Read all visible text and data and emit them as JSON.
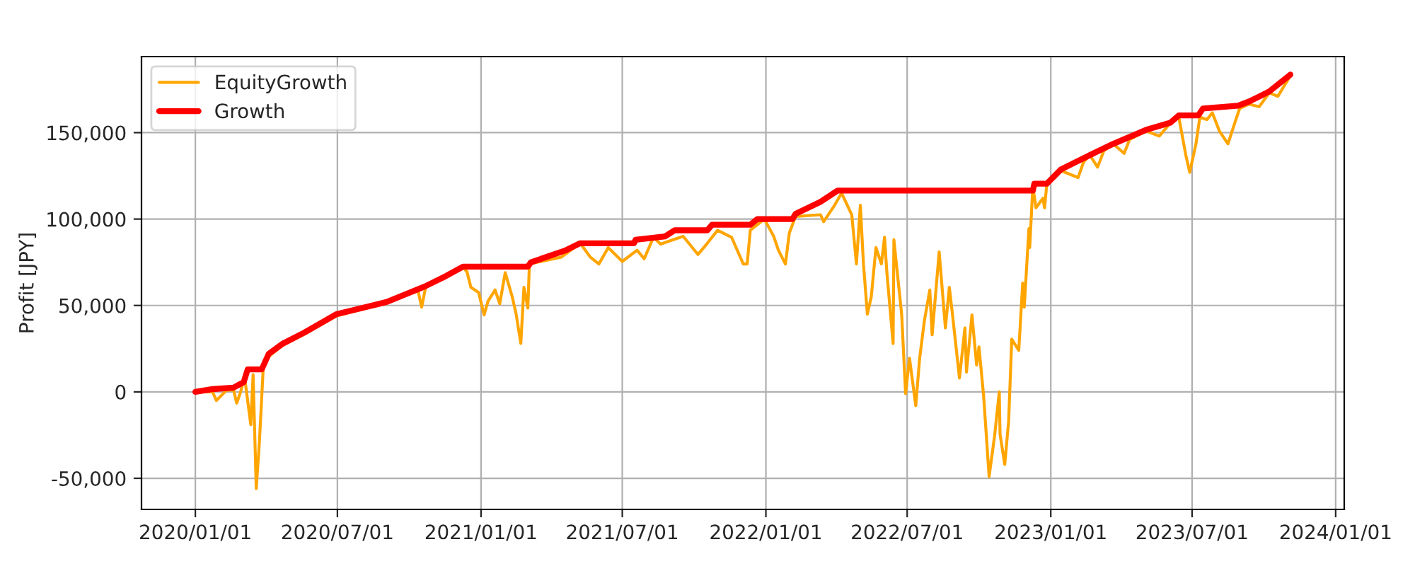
{
  "chart_data": {
    "type": "line",
    "ylabel": "Profit [JPY]",
    "legend": "top left",
    "grid": true,
    "marker": "none",
    "line_style": "solid",
    "xlim": [
      "2019-10-24",
      "2024-01-12"
    ],
    "xticks": [
      {
        "value": "2020-01-01",
        "label": "2020/01/01"
      },
      {
        "value": "2020-07-01",
        "label": "2020/07/01"
      },
      {
        "value": "2021-01-01",
        "label": "2021/01/01"
      },
      {
        "value": "2021-07-01",
        "label": "2021/07/01"
      },
      {
        "value": "2022-01-01",
        "label": "2022/01/01"
      },
      {
        "value": "2022-07-01",
        "label": "2022/07/01"
      },
      {
        "value": "2023-01-01",
        "label": "2023/01/01"
      },
      {
        "value": "2023-07-01",
        "label": "2023/07/01"
      },
      {
        "value": "2024-01-01",
        "label": "2024/01/01"
      }
    ],
    "ylim": [
      -68000,
      194000
    ],
    "yticks": [
      {
        "value": -50000,
        "label": "-50,000"
      },
      {
        "value": 0,
        "label": "0"
      },
      {
        "value": 50000,
        "label": "50,000"
      },
      {
        "value": 100000,
        "label": "100,000"
      },
      {
        "value": 150000,
        "label": "150,000"
      }
    ],
    "series": [
      {
        "name": "EquityGrowth",
        "color": "#ffa500",
        "x": [
          "2020-01-01",
          "2020-01-23",
          "2020-01-28",
          "2020-02-10",
          "2020-02-19",
          "2020-02-23",
          "2020-02-28",
          "2020-03-04",
          "2020-03-12",
          "2020-03-15",
          "2020-03-19",
          "2020-03-23",
          "2020-03-28",
          "2020-04-04",
          "2020-04-22",
          "2020-05-20",
          "2020-06-30",
          "2020-09-02",
          "2020-10-12",
          "2020-10-17",
          "2020-10-22",
          "2020-11-17",
          "2020-12-09",
          "2020-12-14",
          "2020-12-19",
          "2020-12-29",
          "2021-01-05",
          "2021-01-10",
          "2021-01-19",
          "2021-01-25",
          "2021-02-01",
          "2021-02-10",
          "2021-02-15",
          "2021-02-21",
          "2021-02-25",
          "2021-03-02",
          "2021-03-04",
          "2021-04-14",
          "2021-05-08",
          "2021-05-21",
          "2021-06-01",
          "2021-06-13",
          "2021-07-01",
          "2021-07-20",
          "2021-07-29",
          "2021-08-10",
          "2021-08-19",
          "2021-09-17",
          "2021-10-06",
          "2021-10-18",
          "2021-10-31",
          "2021-11-18",
          "2021-12-03",
          "2021-12-08",
          "2021-12-12",
          "2021-12-30",
          "2022-01-11",
          "2022-01-17",
          "2022-01-26",
          "2022-01-31",
          "2022-02-08",
          "2022-03-12",
          "2022-03-16",
          "2022-03-30",
          "2022-04-08",
          "2022-04-21",
          "2022-04-27",
          "2022-05-02",
          "2022-05-06",
          "2022-05-11",
          "2022-05-16",
          "2022-05-22",
          "2022-05-29",
          "2022-06-02",
          "2022-06-05",
          "2022-06-13",
          "2022-06-14",
          "2022-06-24",
          "2022-06-29",
          "2022-07-04",
          "2022-07-12",
          "2022-07-17",
          "2022-07-23",
          "2022-07-30",
          "2022-08-02",
          "2022-08-11",
          "2022-08-19",
          "2022-08-24",
          "2022-08-28",
          "2022-09-06",
          "2022-09-13",
          "2022-09-15",
          "2022-09-22",
          "2022-09-28",
          "2022-10-01",
          "2022-10-07",
          "2022-10-14",
          "2022-10-21",
          "2022-10-27",
          "2022-10-28",
          "2022-11-03",
          "2022-11-08",
          "2022-11-12",
          "2022-11-21",
          "2022-11-26",
          "2022-11-28",
          "2022-12-04",
          "2022-12-05",
          "2022-12-09",
          "2022-12-13",
          "2022-12-22",
          "2022-12-24",
          "2022-12-27",
          "2023-01-14",
          "2023-02-05",
          "2023-02-12",
          "2023-02-20",
          "2023-03-02",
          "2023-03-10",
          "2023-03-22",
          "2023-04-05",
          "2023-04-12",
          "2023-05-03",
          "2023-05-20",
          "2023-06-03",
          "2023-06-14",
          "2023-06-23",
          "2023-06-28",
          "2023-07-06",
          "2023-07-11",
          "2023-07-20",
          "2023-07-27",
          "2023-08-05",
          "2023-08-16",
          "2023-08-25",
          "2023-08-31",
          "2023-09-12",
          "2023-09-25",
          "2023-10-08",
          "2023-10-19",
          "2023-11-04"
        ],
        "values": [
          0,
          0,
          -5000,
          1000,
          1000,
          -6500,
          0,
          9000,
          -19000,
          10000,
          -56000,
          -29500,
          14000,
          20500,
          27000,
          33500,
          44000,
          51500,
          59000,
          49000,
          60500,
          66500,
          72000,
          69500,
          60500,
          57500,
          44500,
          52500,
          59000,
          51000,
          69000,
          55000,
          45000,
          28000,
          60500,
          48500,
          74000,
          78000,
          86000,
          78000,
          74000,
          83500,
          75500,
          82000,
          77000,
          89500,
          85500,
          90000,
          79500,
          86000,
          93500,
          89500,
          74000,
          74000,
          93500,
          100000,
          90000,
          82000,
          74000,
          92000,
          101500,
          102500,
          98500,
          108000,
          115000,
          102500,
          74000,
          108000,
          74000,
          45000,
          55000,
          83500,
          74000,
          89500,
          69000,
          28000,
          88000,
          44500,
          -1000,
          19500,
          -8000,
          19500,
          41000,
          59000,
          33000,
          81000,
          37000,
          60500,
          45000,
          8000,
          37000,
          11500,
          44500,
          15500,
          26000,
          -2500,
          -49000,
          -25500,
          0,
          -24500,
          -42000,
          -17000,
          30500,
          24000,
          63000,
          49000,
          94500,
          83500,
          119000,
          106500,
          112000,
          106500,
          120500,
          128000,
          124000,
          133000,
          137000,
          130000,
          139500,
          143500,
          138000,
          146000,
          151000,
          148000,
          155500,
          159000,
          137000,
          127000,
          143500,
          159000,
          157500,
          161500,
          151000,
          143500,
          156000,
          164000,
          166500,
          165000,
          173000,
          171000,
          183000
        ]
      },
      {
        "name": "Growth",
        "color": "#ff0000",
        "x": [
          "2020-01-01",
          "2020-01-23",
          "2020-02-19",
          "2020-03-03",
          "2020-03-08",
          "2020-03-26",
          "2020-04-04",
          "2020-04-22",
          "2020-05-20",
          "2020-06-30",
          "2020-09-02",
          "2020-10-21",
          "2020-11-17",
          "2020-12-09",
          "2021-03-02",
          "2021-03-06",
          "2021-04-20",
          "2021-05-08",
          "2021-07-16",
          "2021-07-18",
          "2021-08-25",
          "2021-09-06",
          "2021-10-18",
          "2021-10-24",
          "2021-12-12",
          "2021-12-21",
          "2022-02-04",
          "2022-02-08",
          "2022-03-12",
          "2022-04-03",
          "2022-12-09",
          "2022-12-11",
          "2022-12-27",
          "2023-01-14",
          "2023-02-20",
          "2023-03-22",
          "2023-05-03",
          "2023-06-03",
          "2023-06-14",
          "2023-07-09",
          "2023-07-15",
          "2023-08-29",
          "2023-09-12",
          "2023-10-08",
          "2023-11-04"
        ],
        "values": [
          0,
          1600,
          2500,
          5700,
          13000,
          13000,
          22000,
          27900,
          34400,
          45000,
          52000,
          61000,
          67000,
          72500,
          72500,
          75000,
          82000,
          86000,
          86000,
          88000,
          90000,
          93500,
          93500,
          96700,
          96700,
          100000,
          100000,
          103000,
          110000,
          116500,
          116500,
          120500,
          120500,
          128700,
          137000,
          143500,
          151600,
          155700,
          160000,
          160000,
          164000,
          165600,
          168000,
          173800,
          183600
        ]
      }
    ]
  }
}
